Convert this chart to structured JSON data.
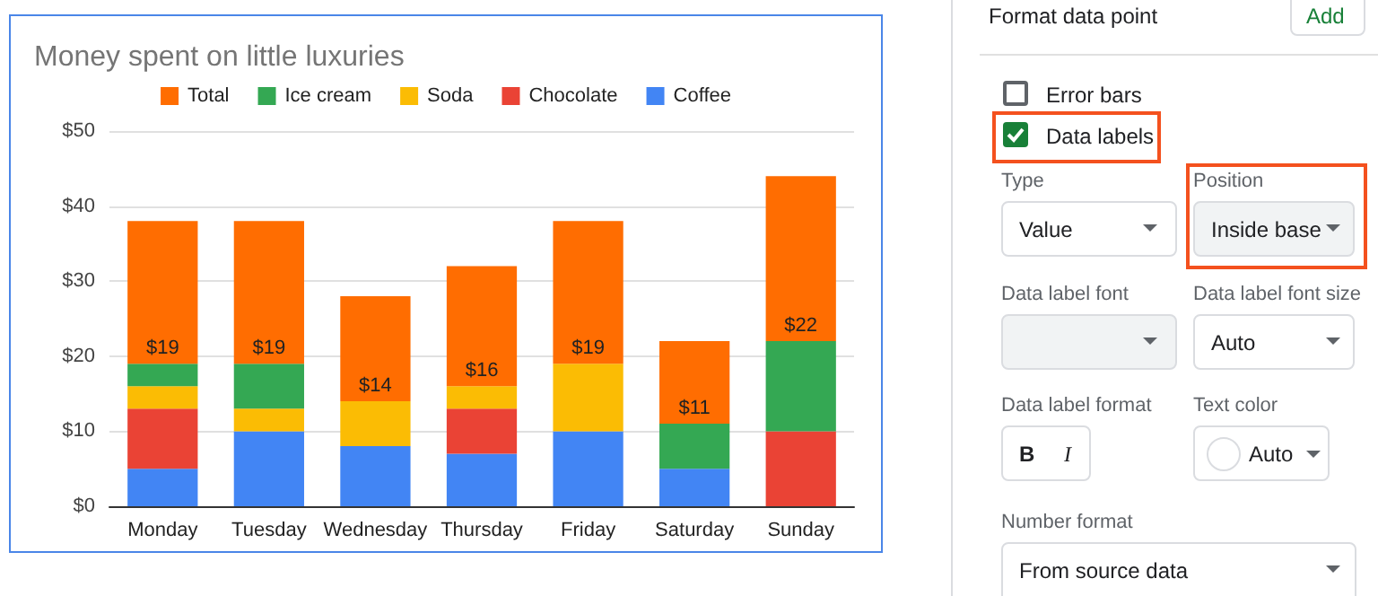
{
  "chart_data": [
    {
      "type": "bar",
      "title": "Money spent on little luxuries",
      "categories": [
        "Monday",
        "Tuesday",
        "Wednesday",
        "Thursday",
        "Friday",
        "Saturday",
        "Sunday"
      ],
      "stacked": true,
      "series": [
        {
          "name": "Coffee",
          "color": "#4285f4",
          "values": [
            5,
            10,
            8,
            7,
            10,
            5,
            0
          ]
        },
        {
          "name": "Chocolate",
          "color": "#ea4335",
          "values": [
            8,
            0,
            0,
            6,
            0,
            0,
            10
          ]
        },
        {
          "name": "Soda",
          "color": "#fbbc04",
          "values": [
            3,
            3,
            6,
            3,
            9,
            0,
            0
          ]
        },
        {
          "name": "Ice cream",
          "color": "#34a853",
          "values": [
            3,
            6,
            0,
            0,
            0,
            6,
            12
          ]
        },
        {
          "name": "Total",
          "color": "#ff6d01",
          "values": [
            19,
            19,
            14,
            16,
            19,
            11,
            22
          ],
          "value_labels": [
            "$19",
            "$19",
            "$14",
            "$16",
            "$19",
            "$11",
            "$22"
          ]
        }
      ],
      "ylim": [
        0,
        50
      ],
      "yticks": [
        {
          "value": 0,
          "label": "$0"
        },
        {
          "value": 10,
          "label": "$10"
        },
        {
          "value": 20,
          "label": "$20"
        },
        {
          "value": 30,
          "label": "$30"
        },
        {
          "value": 40,
          "label": "$40"
        },
        {
          "value": 50,
          "label": "$50"
        }
      ],
      "grid": "y",
      "legend": "top"
    },
    {
      "type": "other",
      "annotations": [
        "Format data point",
        "Add",
        "Error bars",
        "Data labels",
        "Type",
        "Value",
        "Position",
        "Inside base",
        "Data label font",
        "Data label font size",
        "Auto",
        "Data label format",
        "B",
        "I",
        "Text color",
        "Auto",
        "Number format",
        "From source data"
      ]
    }
  ]
}
